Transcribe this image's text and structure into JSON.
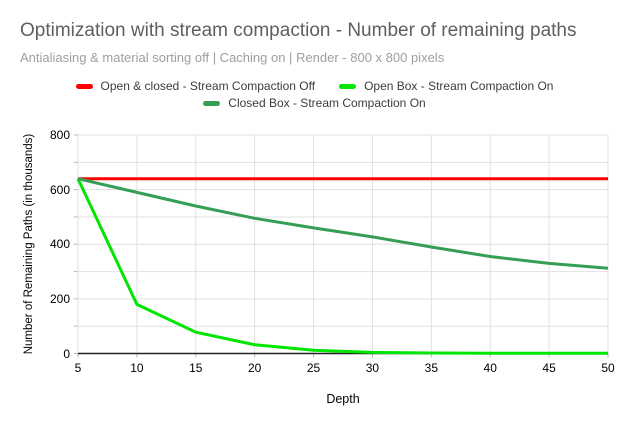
{
  "header": {
    "title": "Optimization with stream compaction - Number of remaining paths",
    "subtitle": "Antialiasing & material sorting off | Caching on | Render - 800 x 800 pixels"
  },
  "colors": {
    "background": "#ffffff",
    "title_text": "#5f5f5f",
    "subtitle_text": "#9e9e9e",
    "legend_text": "#3c3c3c",
    "axis_text": "#000000",
    "gridline": "#e0e0e0",
    "tick_mark": "#b7b7b7",
    "axis_line": "#212121",
    "series_red": "#ff0000",
    "series_bright_green": "#00e600",
    "series_dark_green": "#349e54"
  },
  "chart_data": {
    "type": "line",
    "title": "Optimization with stream compaction - Number of remaining paths",
    "subtitle": "Antialiasing & material sorting off | Caching on | Render - 800 x 800 pixels",
    "xlabel": "Depth",
    "ylabel": "Number of Remaining Paths (in thousands)",
    "x": [
      5,
      10,
      15,
      20,
      25,
      30,
      35,
      40,
      45,
      50
    ],
    "x_tick_labels": [
      "5",
      "10",
      "15",
      "20",
      "25",
      "30",
      "35",
      "40",
      "45",
      "50"
    ],
    "y_tick_labels": [
      "0",
      "200",
      "400",
      "600",
      "800"
    ],
    "xlim": [
      5,
      50
    ],
    "ylim": [
      0,
      800
    ],
    "y_gridline_step": 100,
    "y_label_step": 200,
    "grid": true,
    "legend_position": "top",
    "series": [
      {
        "name": "Open & closed - Stream Compaction Off",
        "color": "#ff0000",
        "values": [
          640,
          640,
          640,
          640,
          640,
          640,
          640,
          640,
          640,
          640
        ]
      },
      {
        "name": "Open Box - Stream Compaction On",
        "color": "#00e600",
        "values": [
          640,
          180,
          78,
          32,
          12,
          4,
          2,
          1,
          1,
          1
        ]
      },
      {
        "name": "Closed Box - Stream Compaction On",
        "color": "#349e54",
        "values": [
          640,
          590,
          540,
          495,
          460,
          427,
          390,
          355,
          330,
          312
        ]
      }
    ]
  }
}
